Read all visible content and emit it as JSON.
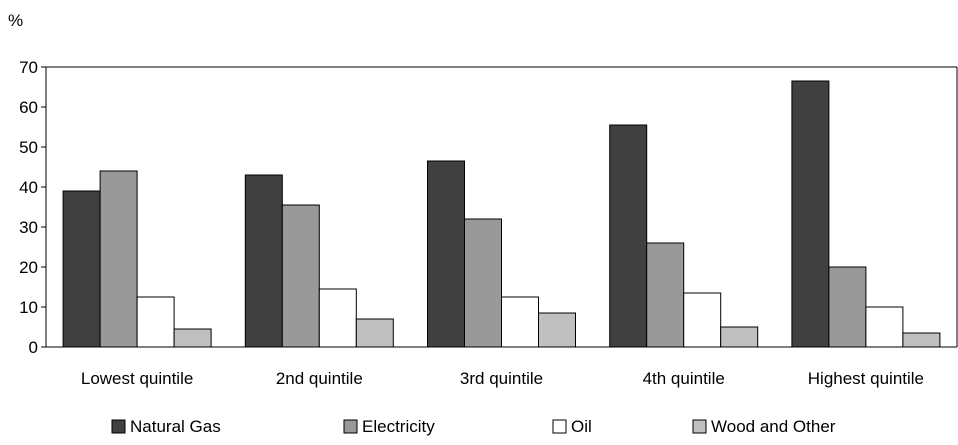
{
  "chart_data": {
    "type": "bar",
    "ylabel": "%",
    "ylim": [
      0,
      70
    ],
    "yticks": [
      0,
      10,
      20,
      30,
      40,
      50,
      60,
      70
    ],
    "grid": false,
    "legend_position": "bottom",
    "categories": [
      "Lowest quintile",
      "2nd quintile",
      "3rd quintile",
      "4th quintile",
      "Highest quintile"
    ],
    "series": [
      {
        "name": "Natural Gas",
        "color": "#404040",
        "values": [
          39,
          43,
          46.5,
          55.5,
          66.5
        ]
      },
      {
        "name": "Electricity",
        "color": "#999999",
        "values": [
          44,
          35.5,
          32,
          26,
          20
        ]
      },
      {
        "name": "Oil",
        "color": "#ffffff",
        "values": [
          12.5,
          14.5,
          12.5,
          13.5,
          10
        ]
      },
      {
        "name": "Wood and Other",
        "color": "#c0c0c0",
        "values": [
          4.5,
          7,
          8.5,
          5,
          3.5
        ]
      }
    ]
  }
}
